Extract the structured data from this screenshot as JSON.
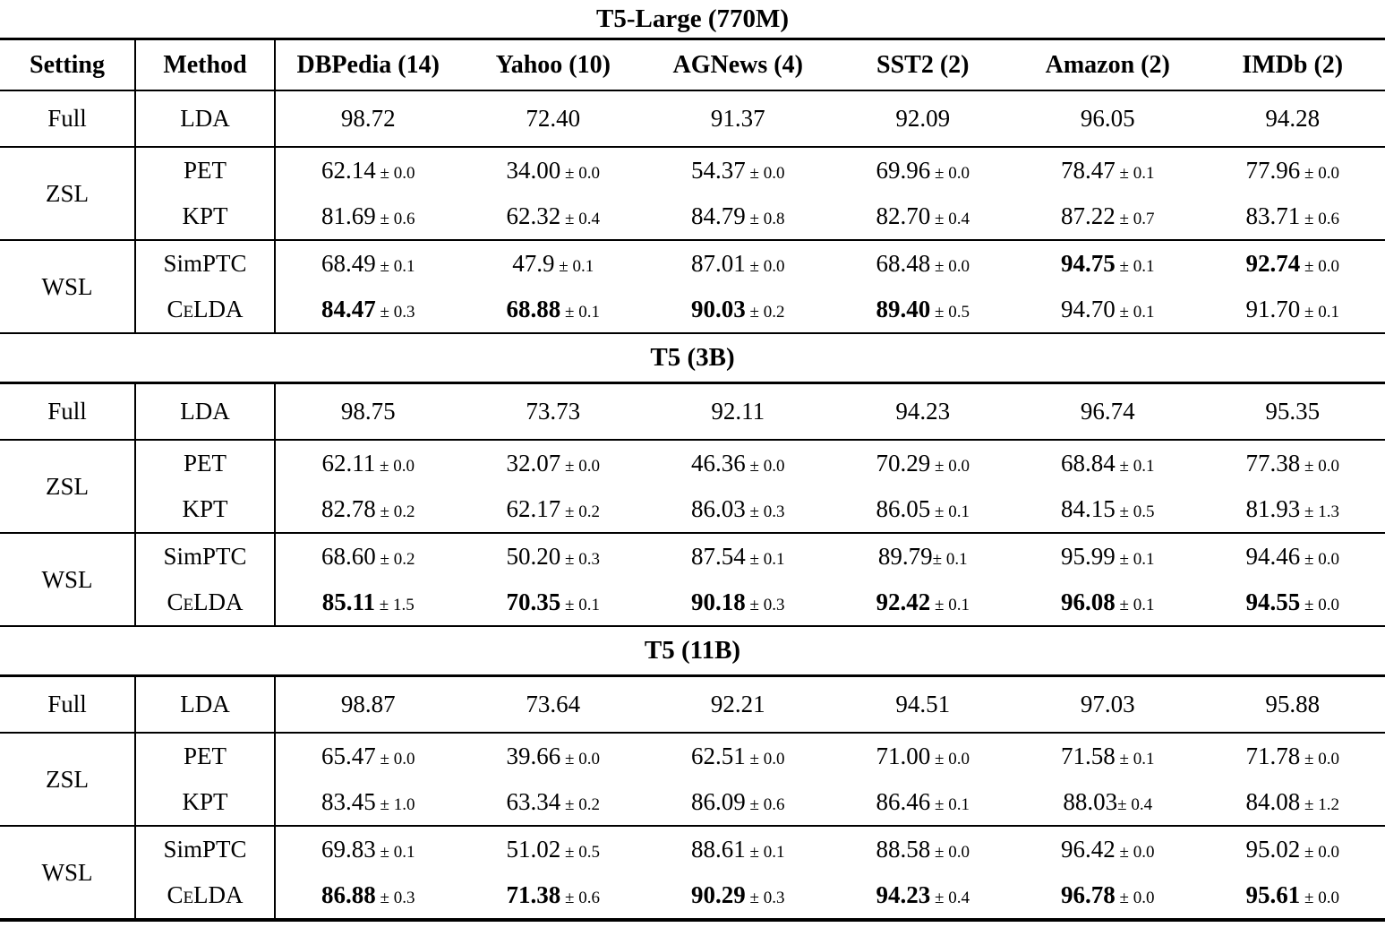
{
  "page": {
    "background": "#ffffff",
    "text_color": "#000000"
  },
  "table": {
    "columns": [
      "Setting",
      "Method",
      "DBPedia (14)",
      "Yahoo (10)",
      "AGNews (4)",
      "SST2 (2)",
      "Amazon (2)",
      "IMDb (2)"
    ],
    "sections": [
      {
        "title": "T5-Large (770M)",
        "groups": [
          {
            "setting": "Full",
            "rows": [
              {
                "method": "LDA",
                "cells": [
                  {
                    "v": "98.72"
                  },
                  {
                    "v": "72.40"
                  },
                  {
                    "v": "91.37"
                  },
                  {
                    "v": "92.09"
                  },
                  {
                    "v": "96.05"
                  },
                  {
                    "v": "94.28"
                  }
                ]
              }
            ]
          },
          {
            "setting": "ZSL",
            "rows": [
              {
                "method": "PET",
                "cells": [
                  {
                    "v": "62.14",
                    "pm": "0.0"
                  },
                  {
                    "v": "34.00",
                    "pm": "0.0"
                  },
                  {
                    "v": "54.37",
                    "pm": "0.0"
                  },
                  {
                    "v": "69.96",
                    "pm": "0.0"
                  },
                  {
                    "v": "78.47",
                    "pm": "0.1"
                  },
                  {
                    "v": "77.96",
                    "pm": "0.0"
                  }
                ]
              },
              {
                "method": "KPT",
                "cells": [
                  {
                    "v": "81.69",
                    "pm": "0.6"
                  },
                  {
                    "v": "62.32",
                    "pm": "0.4"
                  },
                  {
                    "v": "84.79",
                    "pm": "0.8"
                  },
                  {
                    "v": "82.70",
                    "pm": "0.4"
                  },
                  {
                    "v": "87.22",
                    "pm": "0.7"
                  },
                  {
                    "v": "83.71",
                    "pm": "0.6"
                  }
                ]
              }
            ]
          },
          {
            "setting": "WSL",
            "rows": [
              {
                "method": "SimPTC",
                "cells": [
                  {
                    "v": "68.49",
                    "pm": "0.1"
                  },
                  {
                    "v": "47.9",
                    "pm": "0.1"
                  },
                  {
                    "v": "87.01",
                    "pm": "0.0"
                  },
                  {
                    "v": "68.48",
                    "pm": "0.0"
                  },
                  {
                    "v": "94.75",
                    "pm": "0.1",
                    "b": true
                  },
                  {
                    "v": "92.74",
                    "pm": "0.0",
                    "b": true
                  }
                ]
              },
              {
                "method": "CeLDA",
                "sc": true,
                "cells": [
                  {
                    "v": "84.47",
                    "pm": "0.3",
                    "b": true
                  },
                  {
                    "v": "68.88",
                    "pm": "0.1",
                    "b": true
                  },
                  {
                    "v": "90.03",
                    "pm": "0.2",
                    "b": true
                  },
                  {
                    "v": "89.40",
                    "pm": "0.5",
                    "b": true
                  },
                  {
                    "v": "94.70",
                    "pm": "0.1"
                  },
                  {
                    "v": "91.70",
                    "pm": "0.1"
                  }
                ]
              }
            ]
          }
        ]
      },
      {
        "title": "T5 (3B)",
        "groups": [
          {
            "setting": "Full",
            "rows": [
              {
                "method": "LDA",
                "cells": [
                  {
                    "v": "98.75"
                  },
                  {
                    "v": "73.73"
                  },
                  {
                    "v": "92.11"
                  },
                  {
                    "v": "94.23"
                  },
                  {
                    "v": "96.74"
                  },
                  {
                    "v": "95.35"
                  }
                ]
              }
            ]
          },
          {
            "setting": "ZSL",
            "rows": [
              {
                "method": "PET",
                "cells": [
                  {
                    "v": "62.11",
                    "pm": "0.0"
                  },
                  {
                    "v": "32.07",
                    "pm": "0.0"
                  },
                  {
                    "v": "46.36",
                    "pm": "0.0"
                  },
                  {
                    "v": "70.29",
                    "pm": "0.0"
                  },
                  {
                    "v": "68.84",
                    "pm": "0.1"
                  },
                  {
                    "v": "77.38",
                    "pm": "0.0"
                  }
                ]
              },
              {
                "method": "KPT",
                "cells": [
                  {
                    "v": "82.78",
                    "pm": "0.2"
                  },
                  {
                    "v": "62.17",
                    "pm": "0.2"
                  },
                  {
                    "v": "86.03",
                    "pm": "0.3"
                  },
                  {
                    "v": "86.05",
                    "pm": "0.1"
                  },
                  {
                    "v": "84.15",
                    "pm": "0.5"
                  },
                  {
                    "v": "81.93",
                    "pm": "1.3"
                  }
                ]
              }
            ]
          },
          {
            "setting": "WSL",
            "rows": [
              {
                "method": "SimPTC",
                "cells": [
                  {
                    "v": "68.60",
                    "pm": "0.2"
                  },
                  {
                    "v": "50.20",
                    "pm": "0.3"
                  },
                  {
                    "v": "87.54",
                    "pm": "0.1"
                  },
                  {
                    "v": "89.79",
                    "pm": "0.1",
                    "t": true
                  },
                  {
                    "v": "95.99",
                    "pm": "0.1"
                  },
                  {
                    "v": "94.46",
                    "pm": "0.0"
                  }
                ]
              },
              {
                "method": "CeLDA",
                "sc": true,
                "cells": [
                  {
                    "v": "85.11",
                    "pm": "1.5",
                    "b": true
                  },
                  {
                    "v": "70.35",
                    "pm": "0.1",
                    "b": true
                  },
                  {
                    "v": "90.18",
                    "pm": "0.3",
                    "b": true
                  },
                  {
                    "v": "92.42",
                    "pm": "0.1",
                    "b": true
                  },
                  {
                    "v": "96.08",
                    "pm": "0.1",
                    "b": true
                  },
                  {
                    "v": "94.55",
                    "pm": "0.0",
                    "b": true
                  }
                ]
              }
            ]
          }
        ]
      },
      {
        "title": "T5 (11B)",
        "groups": [
          {
            "setting": "Full",
            "rows": [
              {
                "method": "LDA",
                "cells": [
                  {
                    "v": "98.87"
                  },
                  {
                    "v": "73.64"
                  },
                  {
                    "v": "92.21"
                  },
                  {
                    "v": "94.51"
                  },
                  {
                    "v": "97.03"
                  },
                  {
                    "v": "95.88"
                  }
                ]
              }
            ]
          },
          {
            "setting": "ZSL",
            "rows": [
              {
                "method": "PET",
                "cells": [
                  {
                    "v": "65.47",
                    "pm": "0.0"
                  },
                  {
                    "v": "39.66",
                    "pm": "0.0"
                  },
                  {
                    "v": "62.51",
                    "pm": "0.0"
                  },
                  {
                    "v": "71.00",
                    "pm": "0.0"
                  },
                  {
                    "v": "71.58",
                    "pm": "0.1"
                  },
                  {
                    "v": "71.78",
                    "pm": "0.0"
                  }
                ]
              },
              {
                "method": "KPT",
                "cells": [
                  {
                    "v": "83.45",
                    "pm": "1.0"
                  },
                  {
                    "v": "63.34",
                    "pm": "0.2"
                  },
                  {
                    "v": "86.09",
                    "pm": "0.6"
                  },
                  {
                    "v": "86.46",
                    "pm": "0.1"
                  },
                  {
                    "v": "88.03",
                    "pm": "0.4",
                    "t": true
                  },
                  {
                    "v": "84.08",
                    "pm": "1.2"
                  }
                ]
              }
            ]
          },
          {
            "setting": "WSL",
            "rows": [
              {
                "method": "SimPTC",
                "cells": [
                  {
                    "v": "69.83",
                    "pm": "0.1"
                  },
                  {
                    "v": "51.02",
                    "pm": "0.5"
                  },
                  {
                    "v": "88.61",
                    "pm": "0.1"
                  },
                  {
                    "v": "88.58",
                    "pm": "0.0"
                  },
                  {
                    "v": "96.42",
                    "pm": "0.0"
                  },
                  {
                    "v": "95.02",
                    "pm": "0.0"
                  }
                ]
              },
              {
                "method": "CeLDA",
                "sc": true,
                "cells": [
                  {
                    "v": "86.88",
                    "pm": "0.3",
                    "b": true
                  },
                  {
                    "v": "71.38",
                    "pm": "0.6",
                    "b": true
                  },
                  {
                    "v": "90.29",
                    "pm": "0.3",
                    "b": true
                  },
                  {
                    "v": "94.23",
                    "pm": "0.4",
                    "b": true
                  },
                  {
                    "v": "96.78",
                    "pm": "0.0",
                    "b": true
                  },
                  {
                    "v": "95.61",
                    "pm": "0.0",
                    "b": true
                  }
                ]
              }
            ]
          }
        ]
      }
    ]
  }
}
